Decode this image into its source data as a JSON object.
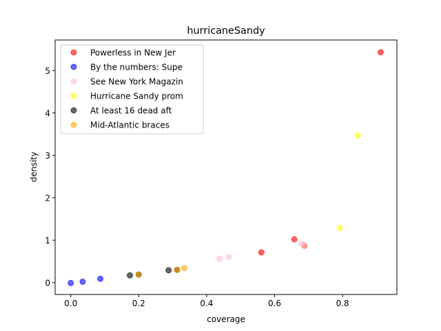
{
  "chart_data": {
    "type": "scatter",
    "title": "hurricaneSandy",
    "xlabel": "coverage",
    "ylabel": "density",
    "xlim": [
      -0.046,
      0.96
    ],
    "ylim": [
      -0.28,
      5.72
    ],
    "xticks": [
      "0.0",
      "0.2",
      "0.4",
      "0.6",
      "0.8"
    ],
    "xtick_values": [
      0.0,
      0.2,
      0.4,
      0.6,
      0.8
    ],
    "yticks": [
      "0",
      "1",
      "2",
      "3",
      "4",
      "5"
    ],
    "ytick_values": [
      0,
      1,
      2,
      3,
      4,
      5
    ],
    "grid": false,
    "legend_position": "upper-left",
    "series": [
      {
        "name": "Powerless in New Jer",
        "color": "#ff0000",
        "points": [
          [
            0.912,
            5.43
          ],
          [
            0.658,
            1.02
          ],
          [
            0.688,
            0.87
          ],
          [
            0.561,
            0.71
          ]
        ]
      },
      {
        "name": "By the numbers: Supe",
        "color": "#0000ff",
        "points": [
          [
            0.0,
            -0.01
          ],
          [
            0.035,
            0.02
          ],
          [
            0.087,
            0.09
          ]
        ]
      },
      {
        "name": "See New York Magazin",
        "color": "#ffc0cb",
        "points": [
          [
            0.438,
            0.56
          ],
          [
            0.465,
            0.6
          ],
          [
            0.68,
            0.92
          ],
          [
            0.688,
            0.88
          ]
        ]
      },
      {
        "name": "Hurricane Sandy prom",
        "color": "#ffff00",
        "points": [
          [
            0.845,
            3.47
          ],
          [
            0.792,
            1.29
          ]
        ]
      },
      {
        "name": "At least 16 dead aft",
        "color": "#000000",
        "points": [
          [
            0.174,
            0.17
          ],
          [
            0.2,
            0.19
          ],
          [
            0.288,
            0.29
          ],
          [
            0.313,
            0.3
          ]
        ]
      },
      {
        "name": "Mid-Atlantic braces",
        "color": "#ffa500",
        "points": [
          [
            0.2,
            0.19
          ],
          [
            0.313,
            0.3
          ],
          [
            0.334,
            0.34
          ]
        ]
      }
    ]
  }
}
